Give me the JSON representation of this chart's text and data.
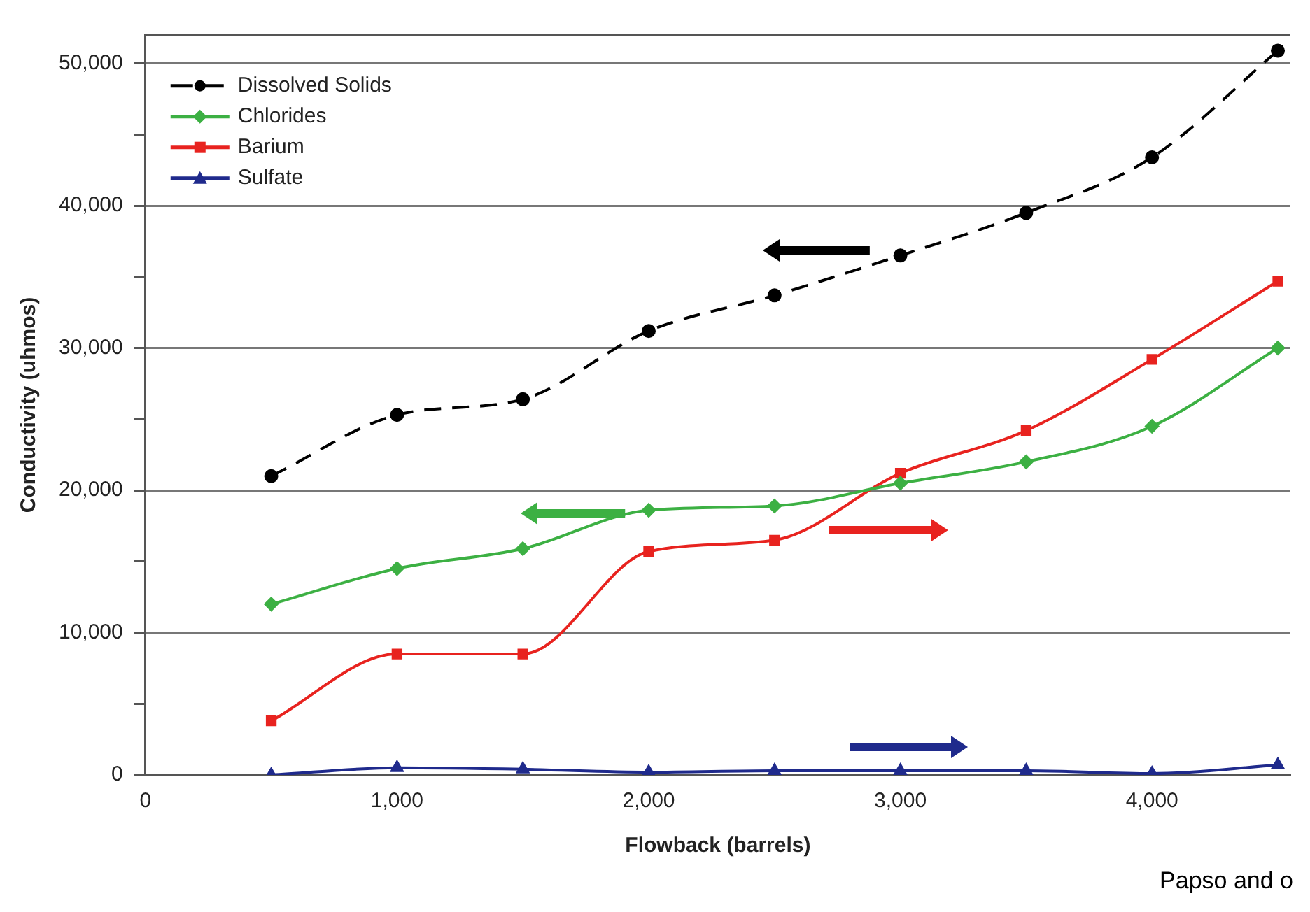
{
  "chart_data": {
    "type": "line",
    "xlabel": "Flowback (barrels)",
    "ylabel": "Conductivity (uhmos)",
    "x": [
      500,
      1000,
      1500,
      2000,
      2500,
      3000,
      3500,
      4000,
      4500
    ],
    "xlim": [
      0,
      4550
    ],
    "xticks": [
      0,
      {
        "value": 1000,
        "label": "1,000"
      },
      {
        "value": 2000,
        "label": "2,000"
      },
      {
        "value": 3000,
        "label": "3,000"
      },
      {
        "value": 4000,
        "label": "4,000"
      }
    ],
    "ylim": [
      0,
      52000
    ],
    "yticks": [
      0,
      {
        "value": 5000,
        "label": null
      },
      {
        "value": 10000,
        "label": "10,000"
      },
      {
        "value": 15000,
        "label": null
      },
      {
        "value": 20000,
        "label": "20,000"
      },
      {
        "value": 25000,
        "label": null
      },
      {
        "value": 30000,
        "label": "30,000"
      },
      {
        "value": 35000,
        "label": null
      },
      {
        "value": 40000,
        "label": "40,000"
      },
      {
        "value": 45000,
        "label": null
      },
      {
        "value": 50000,
        "label": "50,000"
      }
    ],
    "grid": "y",
    "legend": "top left",
    "series": [
      {
        "name": "Dissolved Solids",
        "color": "#000000",
        "marker": "circle",
        "line_style": "dashed",
        "values": [
          21000,
          25300,
          26400,
          31200,
          33700,
          36500,
          39500,
          43400,
          50900
        ]
      },
      {
        "name": "Chlorides",
        "color": "#3cb043",
        "marker": "diamond",
        "line_style": "solid",
        "values": [
          12000,
          14500,
          15900,
          18600,
          18900,
          20500,
          22000,
          24500,
          30000
        ]
      },
      {
        "name": "Barium",
        "color": "#e8231f",
        "marker": "square",
        "line_style": "solid",
        "values": [
          3800,
          8500,
          8500,
          15700,
          16500,
          21200,
          24200,
          29200,
          34700
        ]
      },
      {
        "name": "Sulfate",
        "color": "#1f2a8c",
        "marker": "triangle",
        "line_style": "solid",
        "values": [
          0,
          500,
          400,
          200,
          300,
          300,
          300,
          100,
          700
        ]
      }
    ],
    "annotations": [
      "Papso and o"
    ]
  }
}
